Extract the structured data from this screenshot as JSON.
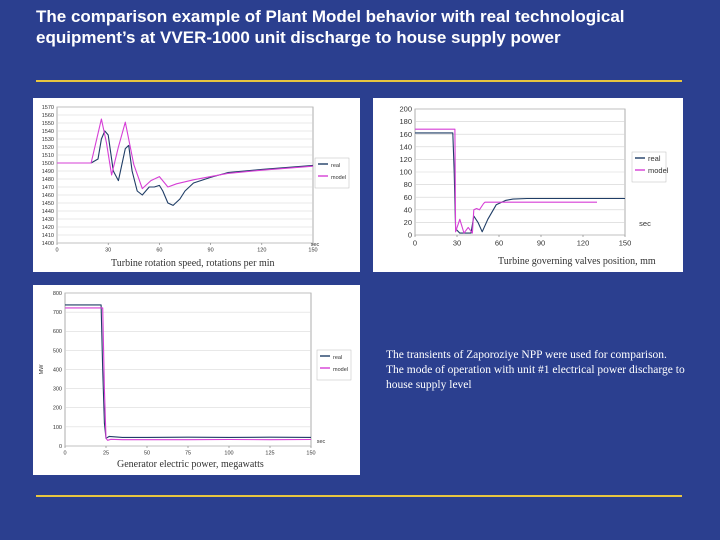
{
  "slide": {
    "title": "The comparison example of Plant Model behavior with real technological equipment’s at VVER-1000 unit discharge to house supply power",
    "description": "The transients of Zaporoziye NPP were used for comparison. The mode of operation with unit #1 electrical power discharge to house supply level",
    "colors": {
      "background": "#2b3f8f",
      "rule": "#e8c640",
      "real": "#1f3d66",
      "model": "#d63fd6"
    }
  },
  "captions": {
    "speed": "Turbine rotation speed, rotations per min",
    "valves": "Turbine governing valves position, mm",
    "power": "Generator electric power, megawatts"
  },
  "chart_data": [
    {
      "type": "line",
      "caption": "Turbine rotation speed, rotations per min",
      "xlabel": "sec",
      "xlim": [
        0,
        150
      ],
      "ylim": [
        1400,
        1570
      ],
      "xticks": [
        0,
        30,
        60,
        90,
        120,
        150
      ],
      "yticks": [
        1400,
        1410,
        1420,
        1430,
        1440,
        1450,
        1460,
        1470,
        1480,
        1490,
        1500,
        1510,
        1520,
        1530,
        1540,
        1550,
        1560,
        1570
      ],
      "legend_position": "right",
      "series": [
        {
          "name": "real",
          "color": "#1f3d66",
          "x": [
            0,
            20,
            24,
            26,
            28,
            30,
            33,
            36,
            40,
            42,
            44,
            47,
            50,
            54,
            57,
            60,
            62,
            65,
            68,
            72,
            75,
            80,
            90,
            100,
            120,
            150
          ],
          "y": [
            1500,
            1500,
            1505,
            1530,
            1540,
            1535,
            1490,
            1478,
            1518,
            1522,
            1490,
            1465,
            1460,
            1470,
            1470,
            1472,
            1465,
            1450,
            1447,
            1455,
            1465,
            1475,
            1482,
            1488,
            1492,
            1497
          ]
        },
        {
          "name": "model",
          "color": "#d63fd6",
          "x": [
            0,
            20,
            26,
            29,
            32,
            36,
            40,
            45,
            50,
            55,
            60,
            65,
            70,
            80,
            90,
            100,
            120,
            150
          ],
          "y": [
            1500,
            1500,
            1555,
            1525,
            1485,
            1520,
            1551,
            1498,
            1468,
            1478,
            1483,
            1470,
            1474,
            1479,
            1483,
            1487,
            1491,
            1496
          ]
        }
      ]
    },
    {
      "type": "line",
      "caption": "Turbine governing valves position, mm",
      "xlabel": "sec",
      "xlim": [
        0,
        150
      ],
      "ylim": [
        0,
        200
      ],
      "xticks": [
        0,
        30,
        60,
        90,
        120,
        150
      ],
      "yticks": [
        0,
        20,
        40,
        60,
        80,
        100,
        120,
        140,
        160,
        180,
        200
      ],
      "legend_position": "right",
      "series": [
        {
          "name": "real",
          "color": "#1f3d66",
          "x": [
            0,
            15,
            27,
            28,
            29,
            32,
            37,
            40,
            42,
            45,
            48,
            52,
            58,
            65,
            70,
            80,
            90,
            100,
            110,
            120,
            150
          ],
          "y": [
            162,
            162,
            162,
            100,
            10,
            3,
            3,
            3,
            30,
            20,
            5,
            25,
            48,
            55,
            57,
            58,
            58,
            58,
            58,
            58,
            58
          ]
        },
        {
          "name": "model",
          "color": "#d63fd6",
          "x": [
            0,
            15,
            28.5,
            29,
            32,
            35,
            38,
            41,
            42,
            44,
            46,
            49,
            50,
            55,
            60,
            70,
            80,
            90,
            100,
            110,
            120,
            130
          ],
          "y": [
            168,
            168,
            168,
            5,
            25,
            3,
            12,
            3,
            40,
            42,
            40,
            50,
            52,
            52,
            52,
            52,
            52,
            52,
            52,
            52,
            52,
            52
          ]
        }
      ]
    },
    {
      "type": "line",
      "caption": "Generator electric power, megawatts",
      "ylabel": "MW",
      "xlabel": "sec",
      "xlim": [
        0,
        150
      ],
      "ylim": [
        0,
        800
      ],
      "xticks": [
        0,
        25,
        50,
        75,
        100,
        125,
        150
      ],
      "yticks": [
        0,
        100,
        200,
        300,
        400,
        500,
        600,
        700,
        800
      ],
      "legend_position": "right",
      "series": [
        {
          "name": "real",
          "color": "#1f3d66",
          "x": [
            0,
            22,
            23,
            24,
            25,
            27,
            35,
            50,
            75,
            100,
            125,
            150
          ],
          "y": [
            738,
            738,
            400,
            120,
            40,
            50,
            45,
            45,
            46,
            45,
            46,
            45
          ]
        },
        {
          "name": "model",
          "color": "#d63fd6",
          "x": [
            0,
            23,
            24,
            25,
            26,
            28,
            35,
            50,
            75,
            100,
            125,
            150
          ],
          "y": [
            722,
            722,
            300,
            40,
            30,
            35,
            33,
            33,
            33,
            34,
            33,
            34
          ]
        }
      ]
    }
  ]
}
